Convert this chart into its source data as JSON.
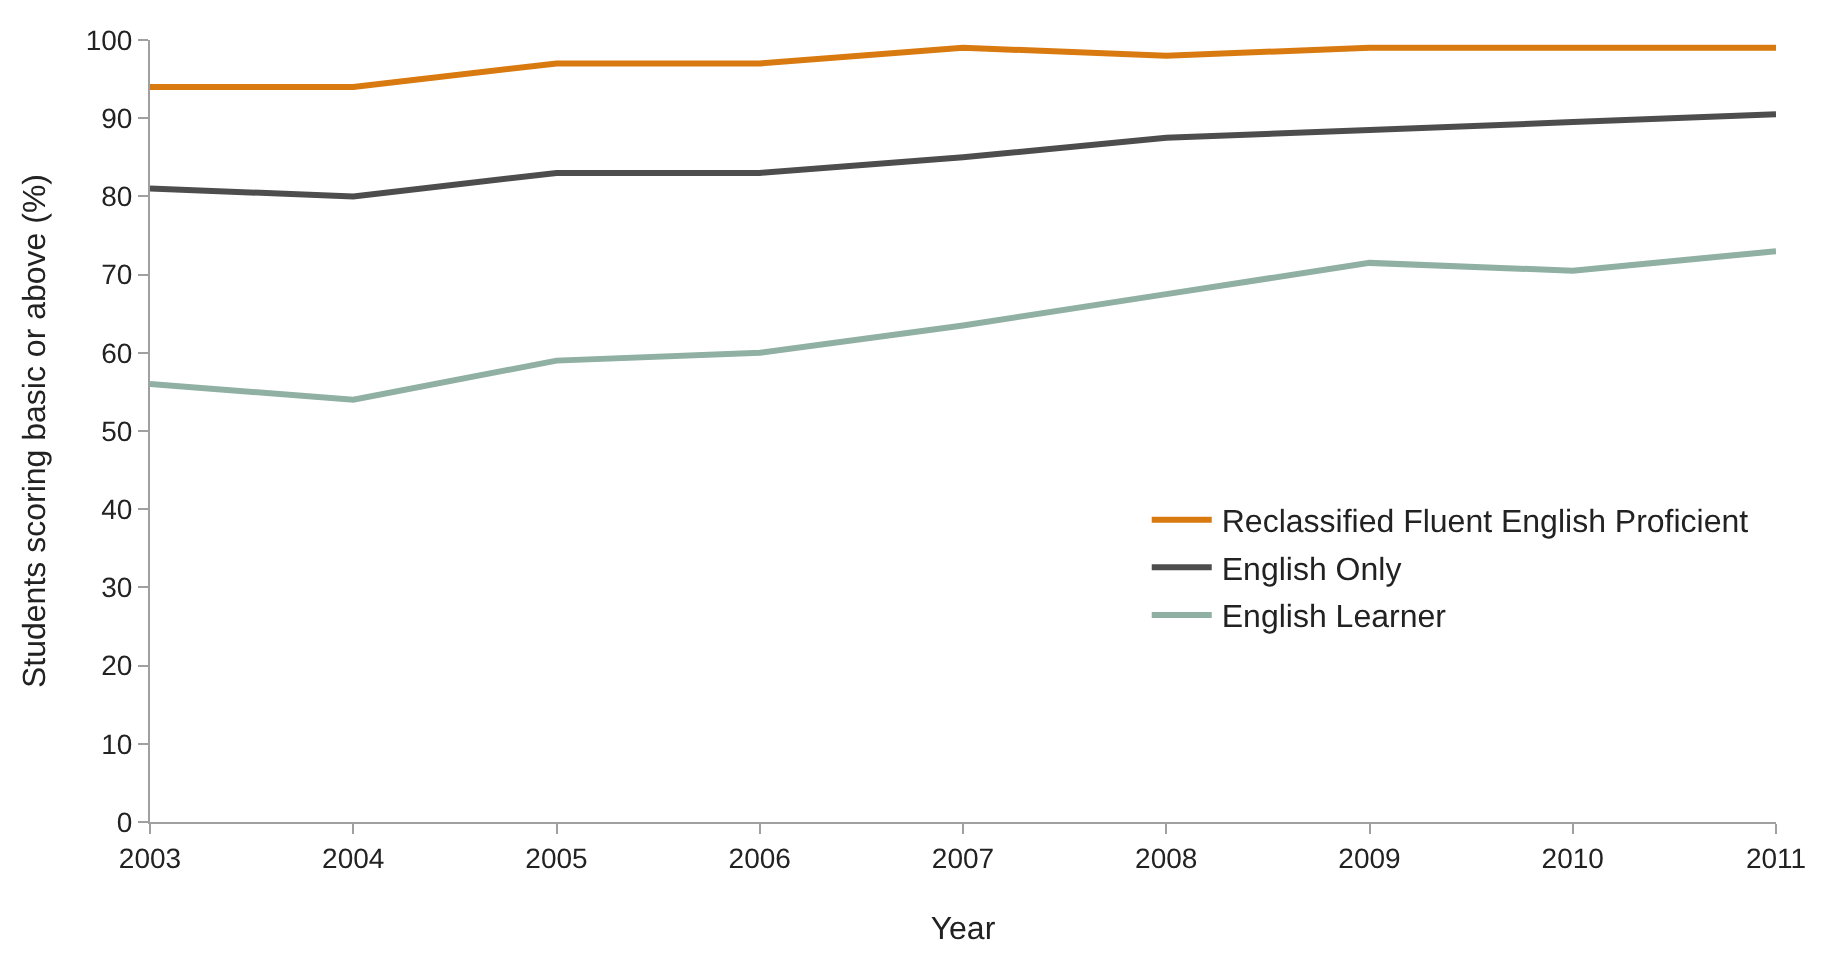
{
  "chart_data": {
    "type": "line",
    "xlabel": "Year",
    "ylabel": "Students scoring basic or above (%)",
    "x": [
      2003,
      2004,
      2005,
      2006,
      2007,
      2008,
      2009,
      2010,
      2011
    ],
    "series": [
      {
        "name": "Reclassified Fluent English Proficient",
        "color": "#d97a10",
        "values": [
          94,
          94,
          97,
          97,
          99,
          98,
          99,
          99,
          99
        ]
      },
      {
        "name": "English Only",
        "color": "#4d4d4d",
        "values": [
          81,
          80,
          83,
          83,
          85,
          87.5,
          88.5,
          89.5,
          90.5
        ]
      },
      {
        "name": "English Learner",
        "color": "#8fb0a2",
        "values": [
          56,
          54,
          59,
          60,
          63.5,
          67.5,
          71.5,
          70.5,
          73
        ]
      }
    ],
    "xlim": [
      2003,
      2011
    ],
    "xticks": [
      2003,
      2004,
      2005,
      2006,
      2007,
      2008,
      2009,
      2010,
      2011
    ],
    "ylim": [
      0,
      100
    ],
    "yticks": [
      0,
      10,
      20,
      30,
      40,
      50,
      60,
      70,
      80,
      90,
      100
    ],
    "legend": "bottom right",
    "marker": "none",
    "line_style": "solid"
  }
}
